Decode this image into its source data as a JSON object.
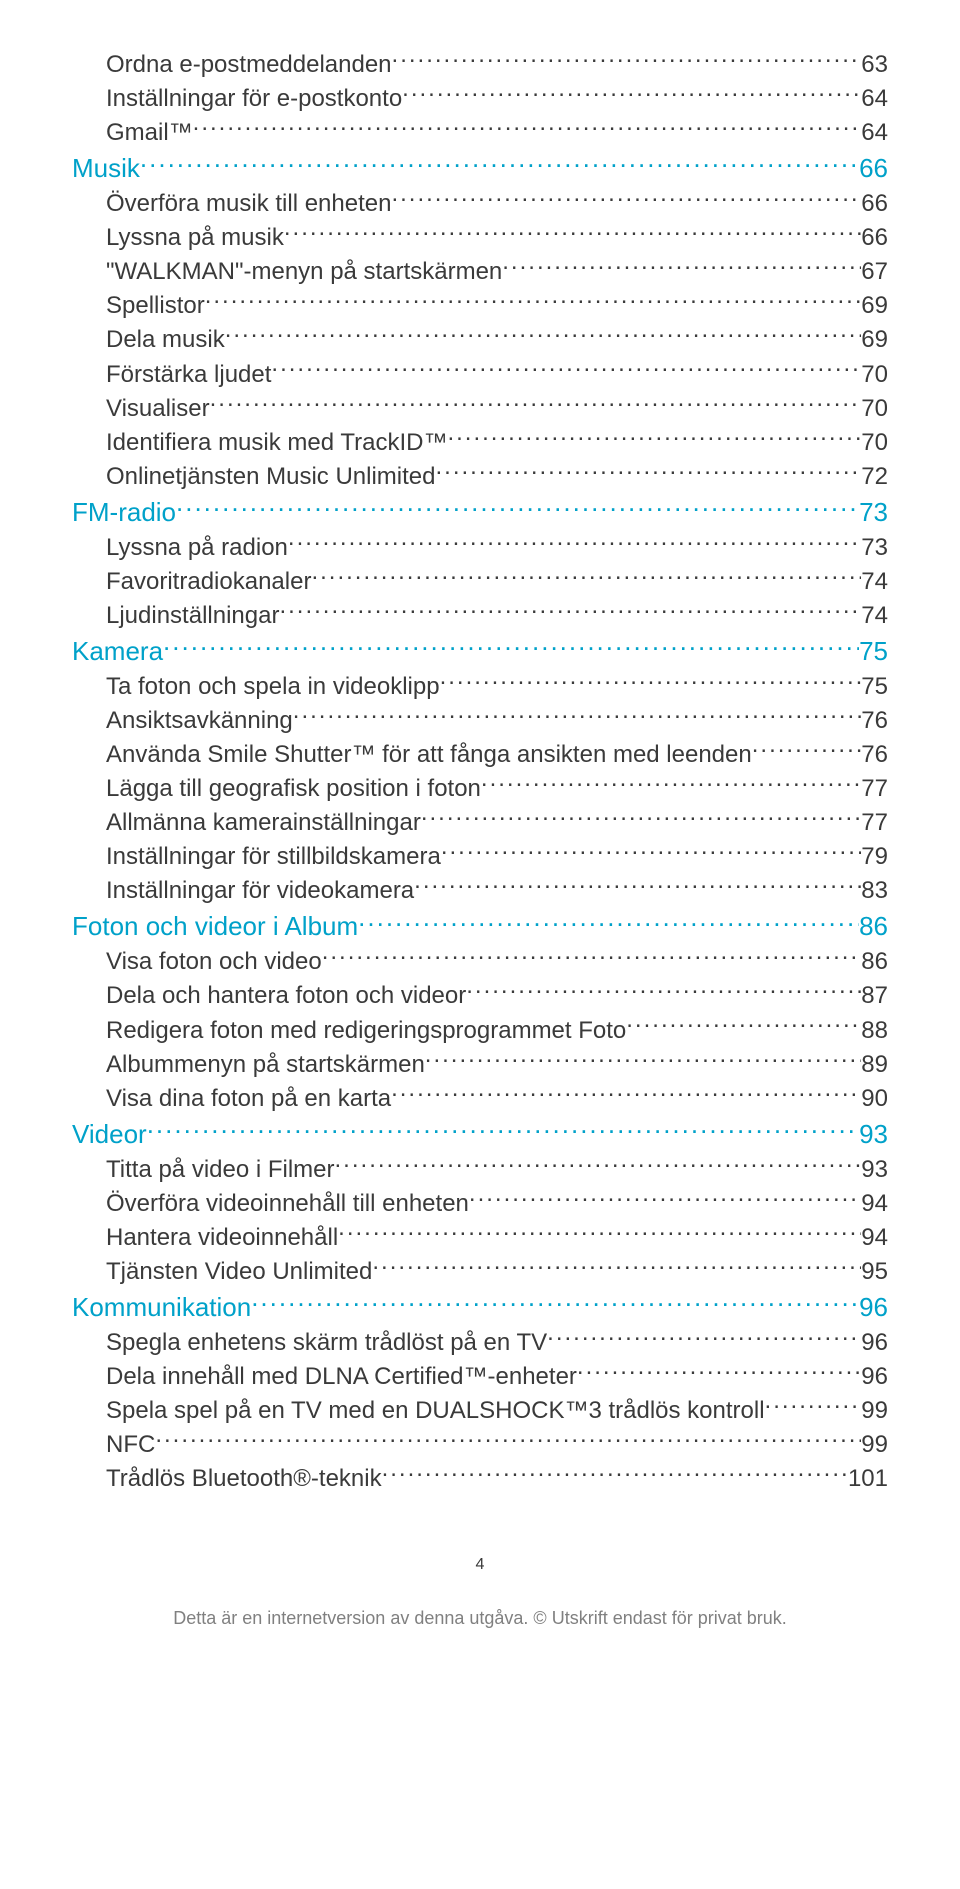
{
  "layout": {
    "section_font_size": 26,
    "item_font_size": 24,
    "line_height": 1.42,
    "section_color": "#00a1c9",
    "item_color": "#3a3a3a",
    "dot_color_section": "#00a1c9",
    "dot_color_item": "#3a3a3a"
  },
  "toc": [
    {
      "level": "item",
      "label": "Ordna e-postmeddelanden",
      "page": "63"
    },
    {
      "level": "item",
      "label": "Inställningar för e-postkonto",
      "page": "64"
    },
    {
      "level": "item",
      "label": "Gmail™",
      "page": "64"
    },
    {
      "level": "section",
      "label": "Musik",
      "page": "66"
    },
    {
      "level": "item",
      "label": "Överföra musik till enheten",
      "page": "66"
    },
    {
      "level": "item",
      "label": "Lyssna på musik",
      "page": "66"
    },
    {
      "level": "item",
      "label": "\"WALKMAN\"-menyn på startskärmen",
      "page": "67"
    },
    {
      "level": "item",
      "label": "Spellistor",
      "page": "69"
    },
    {
      "level": "item",
      "label": "Dela musik",
      "page": "69"
    },
    {
      "level": "item",
      "label": "Förstärka ljudet",
      "page": "70"
    },
    {
      "level": "item",
      "label": "Visualiser",
      "page": "70"
    },
    {
      "level": "item",
      "label": "Identifiera musik med TrackID™",
      "page": "70"
    },
    {
      "level": "item",
      "label": "Onlinetjänsten Music Unlimited",
      "page": "72"
    },
    {
      "level": "section",
      "label": "FM-radio",
      "page": "73"
    },
    {
      "level": "item",
      "label": "Lyssna på radion",
      "page": "73"
    },
    {
      "level": "item",
      "label": "Favoritradiokanaler",
      "page": "74"
    },
    {
      "level": "item",
      "label": "Ljudinställningar",
      "page": "74"
    },
    {
      "level": "section",
      "label": "Kamera",
      "page": "75"
    },
    {
      "level": "item",
      "label": "Ta foton och spela in videoklipp",
      "page": "75"
    },
    {
      "level": "item",
      "label": "Ansiktsavkänning",
      "page": "76"
    },
    {
      "level": "item",
      "label": "Använda Smile Shutter™ för att fånga ansikten med leenden",
      "page": "76"
    },
    {
      "level": "item",
      "label": "Lägga till geografisk position i foton",
      "page": "77"
    },
    {
      "level": "item",
      "label": "Allmänna kamerainställningar",
      "page": "77"
    },
    {
      "level": "item",
      "label": "Inställningar för stillbildskamera",
      "page": "79"
    },
    {
      "level": "item",
      "label": "Inställningar för videokamera",
      "page": "83"
    },
    {
      "level": "section",
      "label": "Foton och videor i Album",
      "page": "86"
    },
    {
      "level": "item",
      "label": "Visa foton och video",
      "page": "86"
    },
    {
      "level": "item",
      "label": "Dela och hantera foton och videor",
      "page": "87"
    },
    {
      "level": "item",
      "label": "Redigera foton med redigeringsprogrammet Foto",
      "page": "88"
    },
    {
      "level": "item",
      "label": "Albummenyn på startskärmen",
      "page": "89"
    },
    {
      "level": "item",
      "label": "Visa dina foton på en karta",
      "page": "90"
    },
    {
      "level": "section",
      "label": "Videor",
      "page": "93"
    },
    {
      "level": "item",
      "label": "Titta på video i Filmer",
      "page": "93"
    },
    {
      "level": "item",
      "label": "Överföra videoinnehåll till enheten",
      "page": "94"
    },
    {
      "level": "item",
      "label": "Hantera videoinnehåll",
      "page": "94"
    },
    {
      "level": "item",
      "label": "Tjänsten Video Unlimited",
      "page": "95"
    },
    {
      "level": "section",
      "label": "Kommunikation",
      "page": "96"
    },
    {
      "level": "item",
      "label": "Spegla enhetens skärm trådlöst på en TV",
      "page": "96"
    },
    {
      "level": "item",
      "label": "Dela innehåll med DLNA Certified™-enheter",
      "page": "96"
    },
    {
      "level": "item",
      "label": "Spela spel på en TV med en DUALSHOCK™3 trådlös kontroll",
      "page": "99"
    },
    {
      "level": "item",
      "label": "NFC",
      "page": "99"
    },
    {
      "level": "item",
      "label": "Trådlös Bluetooth®-teknik",
      "page": "101"
    }
  ],
  "page_number": "4",
  "footer": "Detta är en internetversion av denna utgåva. © Utskrift endast för privat bruk."
}
